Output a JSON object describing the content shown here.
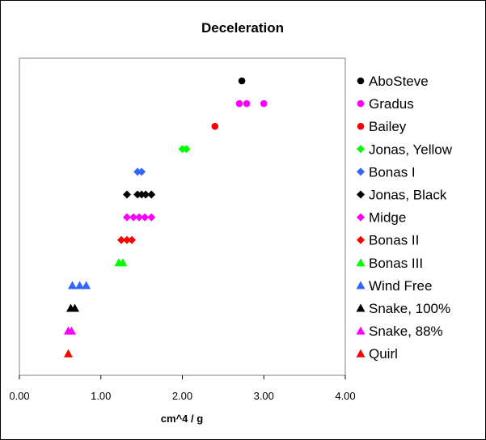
{
  "chart_data": {
    "type": "scatter",
    "title": "Deceleration",
    "xlabel": "cm^4 / g",
    "ylabel": "",
    "xlim": [
      0,
      4
    ],
    "xticks": [
      "0.00",
      "1.00",
      "2.00",
      "3.00",
      "4.00"
    ],
    "grid": false,
    "legend": "right",
    "series": [
      {
        "name": "AboSteve",
        "marker": "circle",
        "color": "#000000",
        "x": [
          2.73
        ]
      },
      {
        "name": "Gradus",
        "marker": "circle",
        "color": "#ff00ff",
        "x": [
          2.7,
          2.79,
          3.0
        ]
      },
      {
        "name": "Bailey",
        "marker": "circle",
        "color": "#ff0000",
        "x": [
          2.4
        ]
      },
      {
        "name": "Jonas, Yellow",
        "marker": "diamond",
        "color": "#00ff00",
        "x": [
          2.0,
          2.05
        ]
      },
      {
        "name": "Bonas I",
        "marker": "diamond",
        "color": "#3366ff",
        "x": [
          1.45,
          1.5
        ]
      },
      {
        "name": "Jonas, Black",
        "marker": "diamond",
        "color": "#000000",
        "x": [
          1.32,
          1.45,
          1.5,
          1.55,
          1.62
        ]
      },
      {
        "name": "Midge",
        "marker": "diamond",
        "color": "#ff00ff",
        "x": [
          1.32,
          1.4,
          1.47,
          1.54,
          1.62
        ]
      },
      {
        "name": "Bonas II",
        "marker": "diamond",
        "color": "#ff0000",
        "x": [
          1.25,
          1.32,
          1.38
        ]
      },
      {
        "name": "Bonas III",
        "marker": "triangle",
        "color": "#00ff00",
        "x": [
          1.22,
          1.27
        ]
      },
      {
        "name": "Wind Free",
        "marker": "triangle",
        "color": "#3366ff",
        "x": [
          0.65,
          0.74,
          0.82
        ]
      },
      {
        "name": "Snake, 100%",
        "marker": "triangle",
        "color": "#000000",
        "x": [
          0.63,
          0.68
        ]
      },
      {
        "name": "Snake, 88%",
        "marker": "triangle",
        "color": "#ff00ff",
        "x": [
          0.6,
          0.64
        ]
      },
      {
        "name": "Quirl",
        "marker": "triangle",
        "color": "#ff0000",
        "x": [
          0.6
        ]
      }
    ]
  }
}
